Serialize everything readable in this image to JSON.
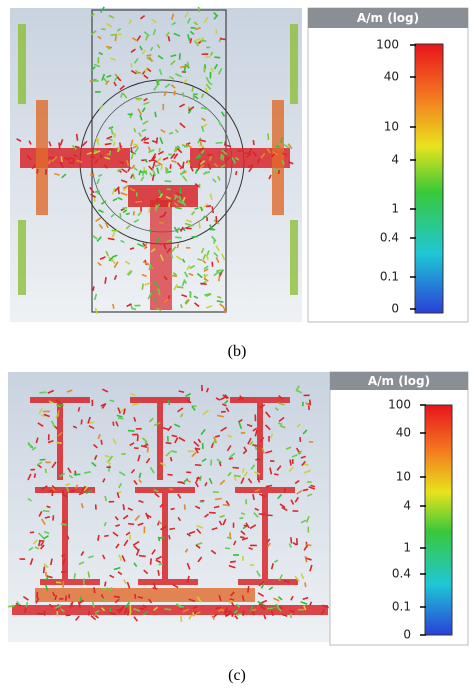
{
  "panels": [
    {
      "label": "(b)",
      "colorbar": {
        "title": "A/m (log)",
        "ticks": [
          "100",
          "40",
          "10",
          "4",
          "1",
          "0.4",
          "0.1",
          "0"
        ]
      }
    },
    {
      "label": "(c)",
      "colorbar": {
        "title": "A/m (log)",
        "ticks": [
          "100",
          "40",
          "10",
          "4",
          "1",
          "0.4",
          "0.1",
          "0"
        ]
      }
    }
  ]
}
